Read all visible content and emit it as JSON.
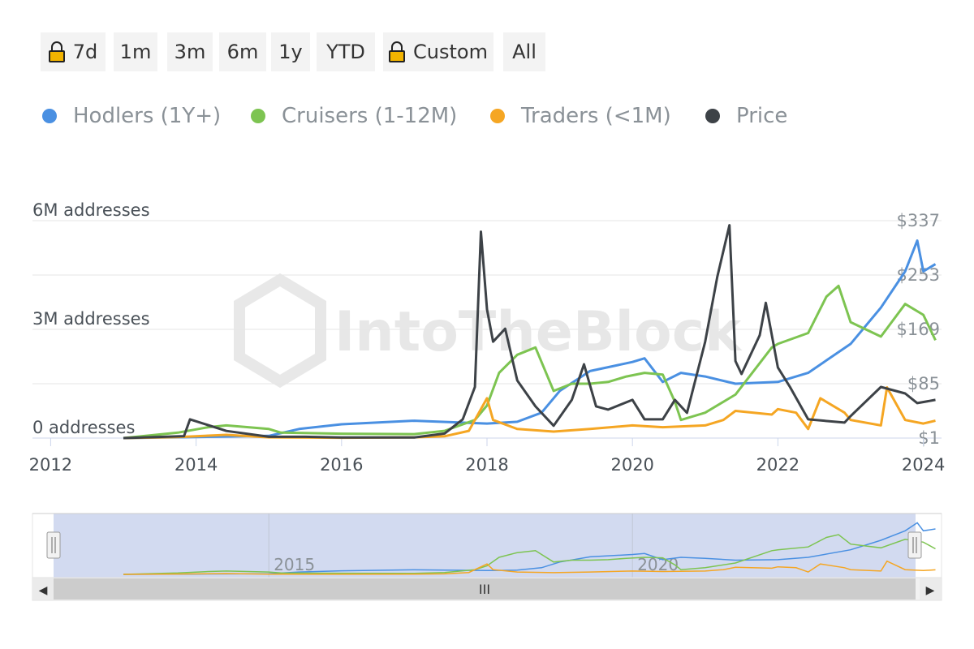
{
  "range_buttons": [
    {
      "label": "7d",
      "locked": true
    },
    {
      "label": "1m",
      "locked": false
    },
    {
      "label": "3m",
      "locked": false
    },
    {
      "label": "6m",
      "locked": false
    },
    {
      "label": "1y",
      "locked": false
    },
    {
      "label": "YTD",
      "locked": false
    },
    {
      "label": "Custom",
      "locked": true
    },
    {
      "label": "All",
      "locked": false
    }
  ],
  "watermark": "IntoTheBlock",
  "colors": {
    "hodlers": "#4a90e2",
    "cruisers": "#7dc451",
    "traders": "#f5a623",
    "price": "#3d4247",
    "navigator_mask": "#d0d8ef"
  },
  "navigator": {
    "labels": [
      "2015",
      "2020"
    ],
    "handle_glyph": "||",
    "scroll_grip": "III",
    "left_arrow": "◀",
    "right_arrow": "▶"
  },
  "chart_data": {
    "type": "line",
    "x_type": "date",
    "x_ticks": [
      "2012",
      "2014",
      "2016",
      "2018",
      "2020",
      "2022",
      "2024"
    ],
    "y_left": {
      "ticks": [
        0,
        3000000,
        6000000
      ],
      "labels": [
        "0 addresses",
        "3M addresses",
        "6M addresses"
      ],
      "range": [
        0,
        6000000
      ]
    },
    "y_right": {
      "ticks": [
        1,
        85,
        169,
        253,
        337
      ],
      "labels": [
        "$1",
        "$85",
        "$169",
        "$253",
        "$337"
      ],
      "range": [
        1,
        337
      ]
    },
    "grid": true,
    "legend_position": "top-left",
    "series": [
      {
        "name": "Hodlers (1Y+)",
        "axis": "left",
        "x": [
          "2013-01",
          "2014-01",
          "2015-01",
          "2015-06",
          "2016-01",
          "2017-01",
          "2018-01",
          "2018-06",
          "2018-10",
          "2019-01",
          "2019-06",
          "2020-01",
          "2020-03",
          "2020-06",
          "2020-09",
          "2021-01",
          "2021-06",
          "2022-01",
          "2022-06",
          "2023-01",
          "2023-06",
          "2023-10",
          "2023-12",
          "2024-01",
          "2024-03"
        ],
        "values": [
          0,
          30000,
          60000,
          250000,
          380000,
          480000,
          400000,
          450000,
          700000,
          1300000,
          1850000,
          2100000,
          2200000,
          1550000,
          1800000,
          1700000,
          1500000,
          1550000,
          1800000,
          2600000,
          3600000,
          4600000,
          5450000,
          4600000,
          4800000
        ]
      },
      {
        "name": "Cruisers (1-12M)",
        "axis": "left",
        "x": [
          "2013-01",
          "2013-10",
          "2014-03",
          "2014-06",
          "2015-01",
          "2015-03",
          "2016-01",
          "2017-01",
          "2017-06",
          "2017-11",
          "2018-01",
          "2018-03",
          "2018-06",
          "2018-09",
          "2018-12",
          "2019-03",
          "2019-06",
          "2019-09",
          "2019-12",
          "2020-03",
          "2020-06",
          "2020-08",
          "2020-09",
          "2021-01",
          "2021-06",
          "2021-12",
          "2022-01",
          "2022-06",
          "2022-09",
          "2022-11",
          "2023-01",
          "2023-06",
          "2023-10",
          "2024-01",
          "2024-03"
        ],
        "values": [
          0,
          150000,
          300000,
          350000,
          250000,
          150000,
          120000,
          110000,
          200000,
          500000,
          900000,
          1800000,
          2300000,
          2500000,
          1300000,
          1500000,
          1500000,
          1550000,
          1700000,
          1800000,
          1750000,
          1000000,
          500000,
          700000,
          1200000,
          2500000,
          2600000,
          2900000,
          3900000,
          4200000,
          3200000,
          2800000,
          3700000,
          3400000,
          2700000
        ]
      },
      {
        "name": "Traders (<1M)",
        "axis": "left",
        "x": [
          "2013-01",
          "2013-10",
          "2014-06",
          "2015-01",
          "2016-01",
          "2017-01",
          "2017-06",
          "2017-10",
          "2018-01",
          "2018-02",
          "2018-06",
          "2018-12",
          "2019-06",
          "2020-01",
          "2020-06",
          "2021-01",
          "2021-04",
          "2021-06",
          "2021-12",
          "2022-01",
          "2022-04",
          "2022-06",
          "2022-08",
          "2022-12",
          "2023-01",
          "2023-06",
          "2023-07",
          "2023-10",
          "2024-01",
          "2024-03"
        ],
        "values": [
          0,
          30000,
          90000,
          20000,
          10000,
          20000,
          50000,
          200000,
          1100000,
          500000,
          250000,
          180000,
          250000,
          350000,
          300000,
          350000,
          500000,
          750000,
          650000,
          800000,
          700000,
          250000,
          1100000,
          700000,
          500000,
          350000,
          1400000,
          500000,
          400000,
          480000
        ]
      },
      {
        "name": "Price",
        "axis": "right",
        "x": [
          "2013-01",
          "2013-11",
          "2013-12",
          "2014-06",
          "2015-01",
          "2015-07",
          "2016-01",
          "2017-01",
          "2017-06",
          "2017-09",
          "2017-11",
          "2017-12",
          "2018-01",
          "2018-02",
          "2018-04",
          "2018-06",
          "2018-09",
          "2018-12",
          "2019-03",
          "2019-05",
          "2019-07",
          "2019-09",
          "2020-01",
          "2020-03",
          "2020-06",
          "2020-08",
          "2020-10",
          "2021-01",
          "2021-03",
          "2021-05",
          "2021-06",
          "2021-07",
          "2021-10",
          "2021-11",
          "2022-01",
          "2022-03",
          "2022-06",
          "2022-12",
          "2023-01",
          "2023-06",
          "2023-10",
          "2023-12",
          "2024-03"
        ],
        "values": [
          1,
          4,
          30,
          12,
          3,
          3,
          2,
          2,
          8,
          30,
          80,
          320,
          200,
          150,
          170,
          90,
          50,
          20,
          60,
          115,
          50,
          45,
          60,
          30,
          30,
          60,
          40,
          150,
          250,
          330,
          120,
          100,
          160,
          210,
          110,
          80,
          30,
          25,
          35,
          80,
          70,
          55,
          60
        ]
      }
    ]
  }
}
